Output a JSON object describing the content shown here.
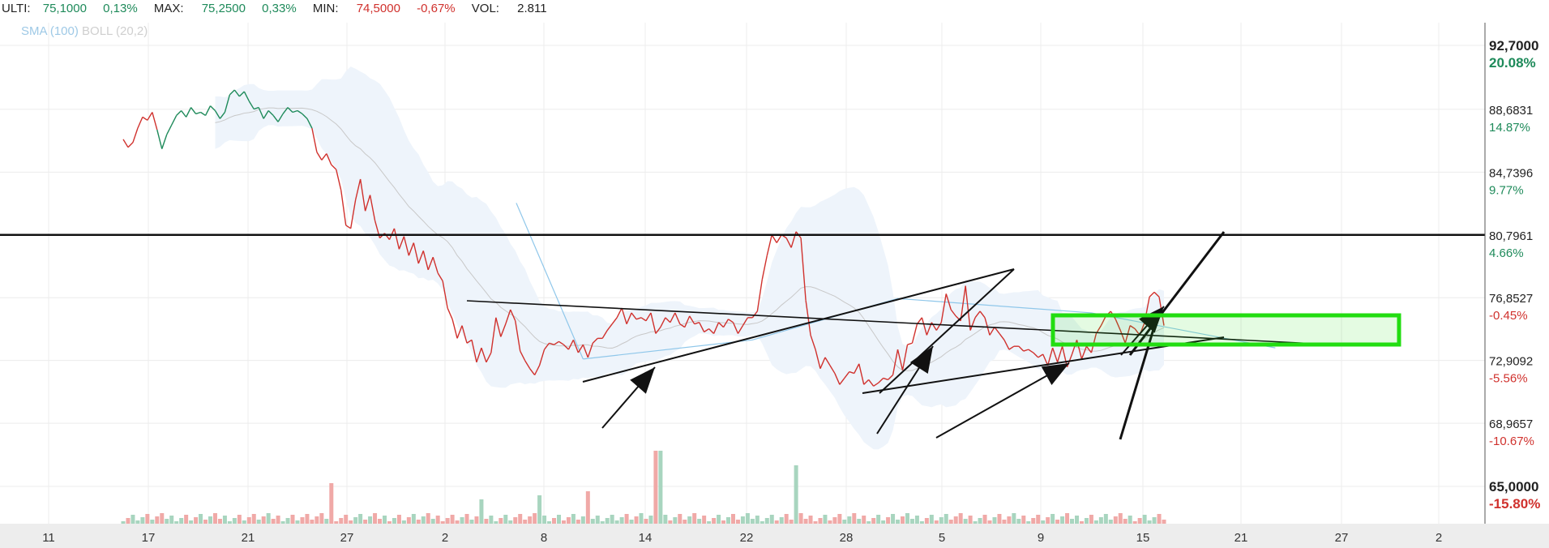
{
  "header": {
    "ulti_label": "ULTI:",
    "ulti_value": "75,1000",
    "ulti_pct": "0,13%",
    "max_label": "MAX:",
    "max_value": "75,2500",
    "max_pct": "0,33%",
    "min_label": "MIN:",
    "min_value": "74,5000",
    "min_pct": "-0,67%",
    "vol_label": "VOL:",
    "vol_value": "2.811"
  },
  "legend": {
    "sma": "SMA (100)",
    "boll": "BOLL (20,2)"
  },
  "colors": {
    "up": "#1e8a5a",
    "down": "#d0312d",
    "sma": "#8fc7ea",
    "band": "#eef4fb",
    "highlight": "#22dd11",
    "grid": "#ececec"
  },
  "chart_data": {
    "type": "line",
    "x_tick_labels": [
      "11",
      "17",
      "21",
      "27",
      "2",
      "8",
      "14",
      "22",
      "28",
      "5",
      "9",
      "15",
      "21",
      "27",
      "2"
    ],
    "y_axis": [
      {
        "price": "92,7000",
        "pct": "20.08%"
      },
      {
        "price": "88,6831",
        "pct": "14.87%"
      },
      {
        "price": "84,7396",
        "pct": "9.77%"
      },
      {
        "price": "80,7961",
        "pct": "4.66%"
      },
      {
        "price": "76,8527",
        "pct": "-0.45%"
      },
      {
        "price": "72,9092",
        "pct": "-5.56%"
      },
      {
        "price": "68,9657",
        "pct": "-10.67%"
      },
      {
        "price": "65,0000",
        "pct": "-15.80%"
      }
    ],
    "ylim": [
      65.0,
      92.7
    ],
    "series": [
      {
        "values": [
          86.8,
          86.3,
          86.6,
          87.5,
          88.2,
          88.0,
          88.5,
          87.4,
          86.2,
          87.1,
          87.7,
          88.3,
          88.6,
          88.2,
          88.8,
          88.4,
          88.5,
          88.3,
          88.9,
          88.6,
          88.1,
          88.5,
          89.6,
          89.9,
          89.5,
          89.8,
          89.2,
          88.7,
          88.8,
          88.1,
          88.6,
          88.3,
          87.9,
          88.4,
          88.8,
          88.5,
          88.6,
          88.4,
          88.1,
          87.5,
          86.0,
          85.5,
          85.9,
          85.2,
          84.9,
          83.6,
          81.4,
          81.2,
          83.0,
          84.3,
          82.3,
          83.3,
          81.7,
          80.6,
          80.9,
          80.5,
          81.2,
          79.9,
          80.7,
          79.5,
          80.3,
          79.0,
          79.8,
          78.6,
          79.4,
          78.4,
          77.9,
          76.2,
          75.5,
          74.3,
          75.1,
          74.0,
          74.2,
          72.8,
          73.7,
          72.8,
          73.4,
          75.6,
          74.4,
          75.2,
          76.1,
          75.4,
          73.5,
          72.9,
          72.4,
          72.0,
          72.6,
          73.6,
          74.0,
          73.9,
          74.1,
          73.9,
          73.6,
          74.2,
          73.4,
          73.9,
          73.1,
          74.0,
          74.3,
          74.3,
          74.8,
          75.2,
          75.6,
          76.2,
          75.2,
          75.9,
          75.5,
          75.6,
          75.4,
          75.9,
          74.6,
          75.0,
          75.6,
          75.3,
          75.9,
          75.2,
          75.0,
          75.7,
          75.2,
          75.3,
          74.7,
          74.9,
          74.6,
          75.3,
          75.0,
          75.5,
          75.3,
          74.6,
          75.1,
          75.6,
          75.6,
          76.0,
          78.0,
          79.5,
          80.8,
          80.3,
          80.8,
          80.6,
          80.0,
          81.0,
          80.6,
          76.7,
          74.5,
          73.6,
          72.4,
          73.1,
          72.6,
          72.1,
          71.4,
          71.8,
          72.2,
          72.1,
          72.7,
          71.4,
          71.7,
          71.3,
          71.5,
          71.8,
          71.7,
          72.0,
          73.6,
          72.3,
          73.9,
          74.0,
          75.2,
          75.6,
          74.5,
          75.3,
          74.8,
          75.3,
          77.1,
          76.1,
          75.7,
          75.4,
          77.6,
          74.8,
          75.6,
          76.0,
          75.6,
          74.5,
          75.0,
          74.6,
          74.2,
          73.6,
          73.8,
          73.8,
          73.5,
          73.6,
          73.4,
          73.1,
          73.3,
          72.6,
          73.7,
          72.8,
          73.8,
          72.5,
          73.3,
          74.2,
          73.0,
          73.8,
          73.4,
          74.6,
          75.1,
          75.7,
          76.0,
          75.5,
          74.8,
          74.0,
          75.1,
          74.9,
          74.5,
          75.3,
          76.9,
          77.2,
          76.9,
          75.1
        ]
      }
    ],
    "sma_path": [
      [
        82.8,
        81.2
      ],
      [
        73.0,
        95.0
      ]
    ],
    "horizontal_line_price": 80.7961
  }
}
